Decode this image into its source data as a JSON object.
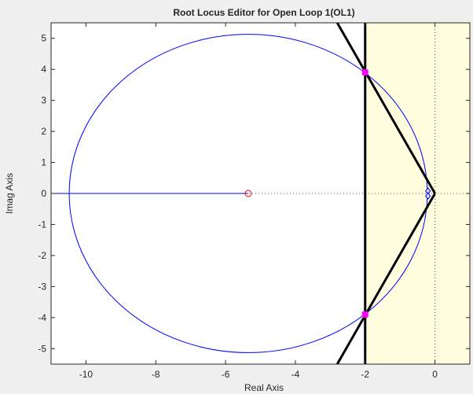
{
  "chart_data": {
    "type": "line",
    "title": "Root Locus Editor for Open Loop 1(OL1)",
    "xlabel": "Real Axis",
    "ylabel": "Imag Axis",
    "xlim": [
      -11,
      1
    ],
    "ylim": [
      -5.5,
      5.5
    ],
    "xticks": [
      -10,
      -8,
      -6,
      -4,
      -2,
      0
    ],
    "yticks": [
      -5,
      -4,
      -3,
      -2,
      -1,
      0,
      1,
      2,
      3,
      4,
      5
    ],
    "xtick_labels": [
      "-10",
      "-8",
      "-6",
      "-4",
      "-2",
      "0"
    ],
    "ytick_labels": [
      "-5",
      "-4",
      "-3",
      "-2",
      "-1",
      "0",
      "1",
      "2",
      "3",
      "4",
      "5"
    ],
    "grid": false,
    "colors": {
      "locus": "#0000ff",
      "design_region": "#ffffe0",
      "constraint": "#000000",
      "closed_loop_poles": "#ff00ff",
      "zero": "#ff0000",
      "open_loop_poles": "#0000ff"
    },
    "locus": {
      "circle_center": [
        -5.35,
        0
      ],
      "circle_radius": 5.13,
      "real_axis_branch_x": [
        -11,
        -5.35
      ]
    },
    "zeros": [
      {
        "x": -5.35,
        "y": 0
      }
    ],
    "open_loop_poles": [
      {
        "x": -0.2,
        "y": 0.08
      },
      {
        "x": -0.2,
        "y": -0.08
      }
    ],
    "closed_loop_poles": [
      {
        "x": -2.0,
        "y": 3.9
      },
      {
        "x": -2.0,
        "y": -3.9
      }
    ],
    "design_constraints": {
      "settling_boundary_x": -2.0,
      "damping_lines": [
        [
          [
            0,
            0
          ],
          [
            -2.8,
            5.5
          ]
        ],
        [
          [
            0,
            0
          ],
          [
            -2.8,
            -5.5
          ]
        ]
      ]
    }
  }
}
